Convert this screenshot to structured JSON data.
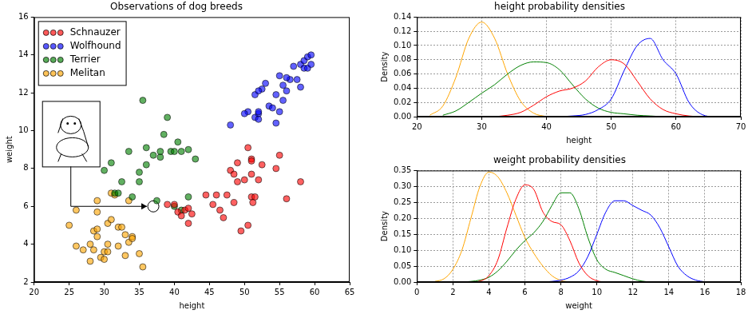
{
  "chart_data": [
    {
      "type": "scatter",
      "title": "Observations of dog breeds",
      "x_label": "height",
      "y_label": "weight",
      "xlim": [
        20,
        65
      ],
      "xticks": [
        20,
        25,
        30,
        35,
        40,
        45,
        50,
        55,
        60,
        65
      ],
      "ylim": [
        2,
        16
      ],
      "yticks": [
        2,
        4,
        6,
        8,
        10,
        12,
        14,
        16
      ],
      "grid": false,
      "legend": "upper left",
      "series": [
        {
          "name": "Schnauzer",
          "color": "#ff0000",
          "values": [
            [
              39,
              6.1
            ],
            [
              40,
              6.1
            ],
            [
              40.5,
              5.7
            ],
            [
              41,
              5.5
            ],
            [
              41.5,
              5.8
            ],
            [
              42,
              5.1
            ],
            [
              42,
              5.9
            ],
            [
              42.5,
              5.6
            ],
            [
              44.5,
              6.6
            ],
            [
              45.5,
              6.1
            ],
            [
              46,
              6.6
            ],
            [
              46.5,
              5.8
            ],
            [
              47,
              5.4
            ],
            [
              47.5,
              6.6
            ],
            [
              48,
              7.9
            ],
            [
              48.5,
              6.2
            ],
            [
              48.5,
              7.7
            ],
            [
              49,
              7.3
            ],
            [
              49,
              8.3
            ],
            [
              49.5,
              4.7
            ],
            [
              50,
              7.4
            ],
            [
              50.5,
              5.0
            ],
            [
              50.5,
              9.1
            ],
            [
              51,
              8.5
            ],
            [
              51,
              7.7
            ],
            [
              51,
              6.5
            ],
            [
              51.2,
              6.2
            ],
            [
              51.5,
              6.5
            ],
            [
              52,
              7.4
            ],
            [
              52.5,
              8.2
            ],
            [
              54.5,
              8.0
            ],
            [
              55,
              8.7
            ],
            [
              56,
              6.4
            ],
            [
              58,
              7.3
            ],
            [
              51,
              8.4
            ]
          ]
        },
        {
          "name": "Wolfhound",
          "color": "#0000ff",
          "values": [
            [
              48,
              10.3
            ],
            [
              50.5,
              11
            ],
            [
              51.5,
              10.7
            ],
            [
              51.5,
              11.9
            ],
            [
              52,
              10.9
            ],
            [
              52,
              10.6
            ],
            [
              52,
              11
            ],
            [
              52.5,
              12.2
            ],
            [
              52,
              12.1
            ],
            [
              53,
              12.5
            ],
            [
              53.5,
              11.3
            ],
            [
              54,
              11.2
            ],
            [
              54.5,
              11.9
            ],
            [
              54.5,
              10.4
            ],
            [
              55,
              11
            ],
            [
              55.5,
              11.6
            ],
            [
              55.5,
              12.4
            ],
            [
              56,
              12.1
            ],
            [
              56.5,
              12.7
            ],
            [
              57,
              13.4
            ],
            [
              57.5,
              12.7
            ],
            [
              58,
              12.3
            ],
            [
              58,
              13.5
            ],
            [
              58.5,
              13.7
            ],
            [
              58.5,
              13.3
            ],
            [
              59,
              13.3
            ],
            [
              59,
              13.9
            ],
            [
              59.5,
              14
            ],
            [
              59.5,
              13.5
            ],
            [
              56,
              12.8
            ],
            [
              55,
              12.9
            ],
            [
              50,
              10.9
            ]
          ]
        },
        {
          "name": "Terrier",
          "color": "#008000",
          "values": [
            [
              30,
              7.9
            ],
            [
              31,
              8.3
            ],
            [
              31.5,
              6.7
            ],
            [
              32,
              6.7
            ],
            [
              32.5,
              7.3
            ],
            [
              33.5,
              8.9
            ],
            [
              34,
              6.5
            ],
            [
              35,
              7.8
            ],
            [
              35,
              7.3
            ],
            [
              35.5,
              11.6
            ],
            [
              36,
              8.2
            ],
            [
              36,
              9.1
            ],
            [
              37,
              8.7
            ],
            [
              37.5,
              6.3
            ],
            [
              38,
              8.6
            ],
            [
              38,
              8.9
            ],
            [
              38.5,
              9.8
            ],
            [
              39,
              10.7
            ],
            [
              39.5,
              8.9
            ],
            [
              40,
              8.9
            ],
            [
              40.5,
              9.4
            ],
            [
              41,
              5.8
            ],
            [
              41,
              8.9
            ],
            [
              42,
              6.5
            ],
            [
              42,
              9.0
            ],
            [
              43,
              8.5
            ],
            [
              40,
              6.0
            ]
          ]
        },
        {
          "name": "Melitan",
          "color": "#ffa500",
          "values": [
            [
              25,
              5.0
            ],
            [
              26,
              5.8
            ],
            [
              26,
              3.9
            ],
            [
              27,
              3.7
            ],
            [
              28,
              4.0
            ],
            [
              28,
              3.1
            ],
            [
              28.5,
              4.7
            ],
            [
              28.5,
              3.7
            ],
            [
              29,
              4.4
            ],
            [
              29,
              4.8
            ],
            [
              29,
              5.7
            ],
            [
              29,
              6.3
            ],
            [
              29.5,
              3.3
            ],
            [
              30,
              3.6
            ],
            [
              30,
              3.2
            ],
            [
              30.5,
              5.1
            ],
            [
              30.5,
              4.0
            ],
            [
              30.5,
              3.6
            ],
            [
              31,
              5.3
            ],
            [
              31,
              6.7
            ],
            [
              31.5,
              6.6
            ],
            [
              32,
              4.9
            ],
            [
              32,
              3.9
            ],
            [
              32.5,
              4.9
            ],
            [
              33,
              3.4
            ],
            [
              33,
              4.5
            ],
            [
              33.5,
              4.1
            ],
            [
              33.5,
              6.3
            ],
            [
              34,
              4.4
            ],
            [
              34,
              4.3
            ],
            [
              35,
              3.5
            ],
            [
              35.5,
              2.8
            ]
          ]
        }
      ],
      "annotations": [
        {
          "x": 37,
          "y": 6
        }
      ]
    },
    {
      "type": "line",
      "title": "height probability densities",
      "x_label": "height",
      "y_label": "Density",
      "xlim": [
        20,
        70
      ],
      "xticks": [
        20,
        30,
        40,
        50,
        60,
        70
      ],
      "ylim": [
        0,
        0.14
      ],
      "yticks": [
        {
          "value": 0,
          "label": "0.00"
        },
        {
          "value": 0.02,
          "label": "0.02"
        },
        {
          "value": 0.04,
          "label": "0.04"
        },
        {
          "value": 0.06,
          "label": "0.06"
        },
        {
          "value": 0.08,
          "label": "0.08"
        },
        {
          "value": 0.1,
          "label": "0.10"
        },
        {
          "value": 0.12,
          "label": "0.12"
        },
        {
          "value": 0.14,
          "label": "0.14"
        }
      ],
      "grid": true,
      "x": [
        20,
        22,
        24,
        26,
        28,
        30,
        32,
        34,
        36,
        38,
        40,
        42,
        44,
        46,
        48,
        50,
        52,
        54,
        56,
        58,
        60,
        62,
        64,
        66,
        68,
        70
      ],
      "series": [
        {
          "color": "#ff0000",
          "values": [
            null,
            null,
            null,
            null,
            null,
            null,
            0,
            0.002,
            0.006,
            0.016,
            0.028,
            0.036,
            0.04,
            0.05,
            0.07,
            0.08,
            0.074,
            0.05,
            0.025,
            0.01,
            0.004,
            0.001,
            0,
            0,
            0,
            null
          ]
        },
        {
          "color": "#0000ff",
          "values": [
            null,
            null,
            null,
            null,
            null,
            null,
            null,
            null,
            null,
            null,
            null,
            0,
            0.001,
            0.003,
            0.01,
            0.025,
            0.065,
            0.1,
            0.11,
            0.08,
            0.06,
            0.02,
            0.003,
            0,
            0,
            null
          ]
        },
        {
          "color": "#008000",
          "values": [
            null,
            null,
            0.002,
            0.008,
            0.02,
            0.033,
            0.045,
            0.06,
            0.072,
            0.077,
            0.076,
            0.066,
            0.045,
            0.025,
            0.012,
            0.006,
            0.004,
            0.002,
            0.001,
            0,
            null,
            null,
            null,
            null,
            null,
            null
          ]
        },
        {
          "color": "#ffa500",
          "values": [
            null,
            0.002,
            0.015,
            0.055,
            0.11,
            0.133,
            0.11,
            0.06,
            0.022,
            0.005,
            0,
            null,
            null,
            null,
            null,
            null,
            null,
            null,
            null,
            null,
            null,
            null,
            null,
            null,
            null,
            null
          ]
        }
      ]
    },
    {
      "type": "line",
      "title": "weight probability densities",
      "x_label": "weight",
      "y_label": "Density",
      "xlim": [
        0,
        18
      ],
      "xticks": [
        0,
        2,
        4,
        6,
        8,
        10,
        12,
        14,
        16,
        18
      ],
      "ylim": [
        0,
        0.35
      ],
      "yticks": [
        {
          "value": 0,
          "label": "0.00"
        },
        {
          "value": 0.05,
          "label": "0.05"
        },
        {
          "value": 0.1,
          "label": "0.10"
        },
        {
          "value": 0.15,
          "label": "0.15"
        },
        {
          "value": 0.2,
          "label": "0.20"
        },
        {
          "value": 0.25,
          "label": "0.25"
        },
        {
          "value": 0.3,
          "label": "0.30"
        },
        {
          "value": 0.35,
          "label": "0.35"
        }
      ],
      "grid": true,
      "x": [
        1,
        1.5,
        2,
        2.5,
        3,
        3.5,
        4,
        4.5,
        5,
        5.5,
        6,
        6.5,
        7,
        7.5,
        8,
        8.5,
        9,
        9.5,
        10,
        10.5,
        11,
        11.5,
        12,
        12.5,
        13,
        13.5,
        14,
        14.5,
        15,
        15.5,
        16,
        16.5
      ],
      "series": [
        {
          "color": "#ff0000",
          "values": [
            null,
            null,
            null,
            null,
            0,
            0.003,
            0.02,
            0.07,
            0.17,
            0.26,
            0.305,
            0.29,
            0.22,
            0.19,
            0.18,
            0.13,
            0.06,
            0.02,
            0.004,
            0,
            null,
            null,
            null,
            null,
            null,
            null,
            null,
            null,
            null,
            null,
            null,
            null
          ]
        },
        {
          "color": "#0000ff",
          "values": [
            null,
            null,
            null,
            null,
            null,
            null,
            null,
            null,
            null,
            null,
            null,
            null,
            0,
            0.002,
            0.006,
            0.015,
            0.035,
            0.08,
            0.15,
            0.22,
            0.255,
            0.255,
            0.24,
            0.225,
            0.21,
            0.17,
            0.11,
            0.05,
            0.02,
            0.006,
            0.001,
            0
          ]
        },
        {
          "color": "#008000",
          "values": [
            null,
            null,
            null,
            0,
            0.002,
            0.006,
            0.015,
            0.035,
            0.065,
            0.1,
            0.13,
            0.155,
            0.19,
            0.24,
            0.28,
            0.28,
            0.23,
            0.14,
            0.07,
            0.04,
            0.03,
            0.02,
            0.01,
            0.003,
            0,
            null,
            null,
            null,
            null,
            null,
            null,
            null
          ]
        },
        {
          "color": "#ffa500",
          "values": [
            0.002,
            0.01,
            0.04,
            0.1,
            0.2,
            0.3,
            0.345,
            0.33,
            0.28,
            0.21,
            0.14,
            0.09,
            0.05,
            0.02,
            0.005,
            0,
            null,
            null,
            null,
            null,
            null,
            null,
            null,
            null,
            null,
            null,
            null,
            null,
            null,
            null,
            null,
            null
          ]
        }
      ]
    }
  ]
}
